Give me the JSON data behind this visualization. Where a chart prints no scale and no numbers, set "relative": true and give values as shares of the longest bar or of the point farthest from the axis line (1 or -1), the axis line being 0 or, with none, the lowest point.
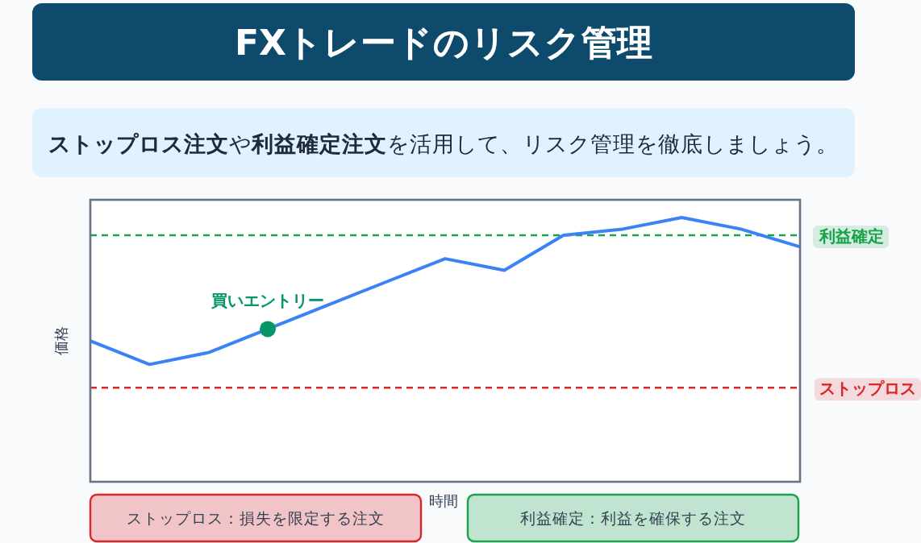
{
  "chart_data": {
    "type": "line",
    "title": "FXトレードのリスク管理",
    "subtitle": "**ストップロス注文**や**利益確定注文**を活用して、リスク管理を徹底しましょう。",
    "xlabel": "時間",
    "ylabel": "価格",
    "relative": true,
    "categories": [
      null,
      null,
      null,
      null,
      null,
      null,
      null,
      null,
      null,
      null,
      null,
      null,
      null
    ],
    "series": [
      {
        "color": "#3b82f6",
        "values": [
          0.533,
          0.444,
          0.489,
          0.578,
          0.667,
          0.756,
          0.844,
          0.8,
          0.933,
          0.956,
          1,
          0.956,
          0.889
        ]
      }
    ],
    "ref_lines": [
      {
        "axis": "y",
        "value": 0.356,
        "label": "ストップロス",
        "color": "#dc2626",
        "line_style": "dashed"
      },
      {
        "axis": "y",
        "value": 0.933,
        "label": "利益確定",
        "color": "#16a34a",
        "line_style": "dashed"
      }
    ],
    "annotations": [
      "ストップロス：損失を限定する注文",
      "利益確定：利益を確保する注文",
      {
        "text": "買いエントリー",
        "y": 0.578
      }
    ],
    "grid": false,
    "marker": "none",
    "line_style": "solid"
  }
}
